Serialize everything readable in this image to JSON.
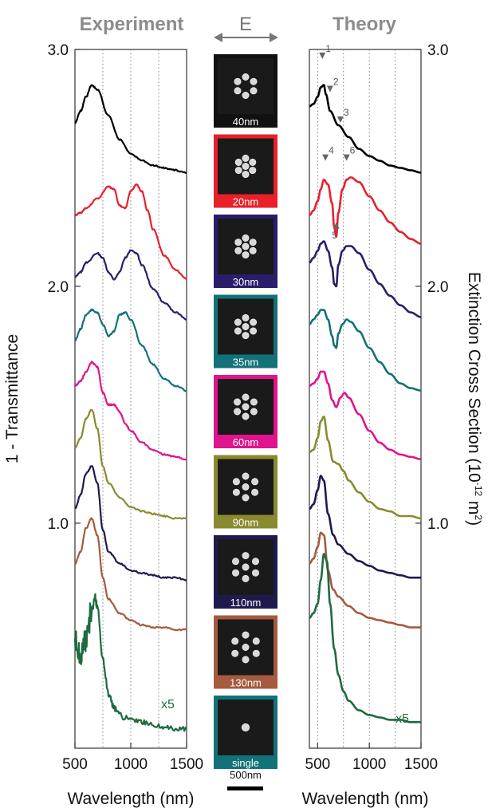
{
  "chart_data": [
    {
      "type": "line",
      "panel": "experiment",
      "title": "Experiment",
      "xlabel": "Wavelength (nm)",
      "ylabel": "1 - Transmittance",
      "xlim": [
        500,
        1500
      ],
      "ylim": [
        0.05,
        3.0
      ],
      "xticks": [
        "500",
        "1000",
        "1500"
      ],
      "yticks": [
        "1.0",
        "2.0",
        "3.0"
      ],
      "gridlines_x": [
        750,
        1000,
        1250
      ],
      "annotation": {
        "text": "x5",
        "color": "#1d6b3f"
      },
      "series": [
        {
          "color": "#000000",
          "x": [
            500,
            550,
            600,
            650,
            700,
            800,
            900,
            1000,
            1100,
            1200,
            1300,
            1400,
            1500
          ],
          "y": [
            2.69,
            2.74,
            2.8,
            2.85,
            2.83,
            2.72,
            2.62,
            2.56,
            2.53,
            2.51,
            2.5,
            2.49,
            2.48
          ]
        },
        {
          "color": "#e8202a",
          "x": [
            500,
            550,
            600,
            700,
            800,
            850,
            900,
            950,
            1000,
            1050,
            1100,
            1150,
            1200,
            1300,
            1400,
            1500
          ],
          "y": [
            2.3,
            2.31,
            2.33,
            2.37,
            2.42,
            2.41,
            2.34,
            2.33,
            2.4,
            2.43,
            2.4,
            2.32,
            2.24,
            2.13,
            2.07,
            2.03
          ]
        },
        {
          "color": "#2a1d6b",
          "x": [
            500,
            550,
            600,
            700,
            750,
            800,
            850,
            900,
            950,
            1000,
            1050,
            1100,
            1200,
            1300,
            1400,
            1500
          ],
          "y": [
            2.04,
            2.06,
            2.1,
            2.14,
            2.12,
            2.06,
            2.03,
            2.06,
            2.12,
            2.15,
            2.14,
            2.09,
            1.99,
            1.93,
            1.89,
            1.86
          ]
        },
        {
          "color": "#137178",
          "x": [
            500,
            550,
            600,
            650,
            700,
            750,
            800,
            850,
            900,
            950,
            1000,
            1100,
            1200,
            1300,
            1400,
            1500
          ],
          "y": [
            1.77,
            1.82,
            1.88,
            1.9,
            1.89,
            1.84,
            1.79,
            1.81,
            1.88,
            1.89,
            1.86,
            1.75,
            1.67,
            1.61,
            1.58,
            1.56
          ]
        },
        {
          "color": "#e0148c",
          "x": [
            500,
            550,
            600,
            650,
            700,
            750,
            800,
            850,
            900,
            950,
            1000,
            1100,
            1200,
            1300,
            1400,
            1500
          ],
          "y": [
            1.58,
            1.6,
            1.64,
            1.68,
            1.66,
            1.55,
            1.5,
            1.5,
            1.47,
            1.42,
            1.39,
            1.34,
            1.31,
            1.29,
            1.28,
            1.27
          ]
        },
        {
          "color": "#8a8a2e",
          "x": [
            500,
            550,
            600,
            650,
            700,
            750,
            800,
            900,
            1000,
            1100,
            1200,
            1300,
            1400,
            1500
          ],
          "y": [
            1.32,
            1.36,
            1.44,
            1.48,
            1.4,
            1.24,
            1.17,
            1.11,
            1.07,
            1.05,
            1.04,
            1.03,
            1.02,
            1.02
          ]
        },
        {
          "color": "#1f1a4e",
          "x": [
            500,
            550,
            600,
            650,
            700,
            750,
            800,
            900,
            1000,
            1100,
            1200,
            1300,
            1400,
            1500
          ],
          "y": [
            1.06,
            1.12,
            1.21,
            1.24,
            1.17,
            0.97,
            0.88,
            0.83,
            0.8,
            0.79,
            0.78,
            0.77,
            0.77,
            0.76
          ]
        },
        {
          "color": "#a65a3e",
          "x": [
            500,
            550,
            600,
            650,
            700,
            750,
            800,
            900,
            1000,
            1100,
            1200,
            1300,
            1400,
            1500
          ],
          "y": [
            0.83,
            0.88,
            0.98,
            1.02,
            0.95,
            0.77,
            0.68,
            0.62,
            0.59,
            0.57,
            0.56,
            0.56,
            0.55,
            0.55
          ]
        },
        {
          "color": "#1d6b3f",
          "x": [
            500,
            550,
            600,
            650,
            680,
            700,
            750,
            800,
            850,
            900,
            1000,
            1100,
            1200,
            1300,
            1400,
            1500
          ],
          "y": [
            0.5,
            0.42,
            0.52,
            0.63,
            0.69,
            0.64,
            0.42,
            0.28,
            0.22,
            0.19,
            0.17,
            0.16,
            0.15,
            0.14,
            0.13,
            0.13
          ]
        }
      ]
    },
    {
      "type": "line",
      "panel": "theory",
      "title": "Theory",
      "xlabel": "Wavelength (nm)",
      "ylabel": "Extinction Cross Section (10",
      "ylabel_exp": "-12",
      "ylabel_unit": " m",
      "ylabel_unit_exp": "2",
      "ylabel_close": ")",
      "xlim": [
        420,
        1500
      ],
      "ylim": [
        0.05,
        3.0
      ],
      "xticks": [
        "500",
        "1000",
        "1500"
      ],
      "yticks": [
        "1.0",
        "2.0",
        "3.0"
      ],
      "gridlines_x": [
        500,
        750,
        1000,
        1250
      ],
      "annotation": {
        "text": "x5",
        "color": "#1d6b3f"
      },
      "markers": [
        {
          "label": "1",
          "x": 545,
          "y": 2.96,
          "dir": "down"
        },
        {
          "label": "2",
          "x": 620,
          "y": 2.82,
          "dir": "down"
        },
        {
          "label": "3",
          "x": 720,
          "y": 2.69,
          "dir": "down"
        },
        {
          "label": "4",
          "x": 575,
          "y": 2.53,
          "dir": "down"
        },
        {
          "label": "6",
          "x": 780,
          "y": 2.53,
          "dir": "down"
        },
        {
          "label": "5",
          "x": 680,
          "y": 2.27,
          "dir": "up"
        }
      ],
      "series": [
        {
          "color": "#000000",
          "x": [
            420,
            460,
            500,
            530,
            560,
            580,
            620,
            700,
            800,
            900,
            1000,
            1100,
            1200,
            1300,
            1400,
            1500
          ],
          "y": [
            2.76,
            2.77,
            2.8,
            2.84,
            2.85,
            2.81,
            2.74,
            2.68,
            2.63,
            2.58,
            2.55,
            2.53,
            2.51,
            2.5,
            2.49,
            2.48
          ]
        },
        {
          "color": "#e8202a",
          "x": [
            420,
            460,
            500,
            530,
            560,
            600,
            640,
            660,
            680,
            700,
            740,
            780,
            820,
            900,
            1000,
            1100,
            1200,
            1300,
            1400,
            1500
          ],
          "y": [
            2.3,
            2.32,
            2.36,
            2.41,
            2.45,
            2.43,
            2.35,
            2.25,
            2.21,
            2.31,
            2.41,
            2.45,
            2.46,
            2.44,
            2.38,
            2.32,
            2.27,
            2.23,
            2.2,
            2.18
          ]
        },
        {
          "color": "#2a1d6b",
          "x": [
            420,
            460,
            500,
            530,
            560,
            600,
            640,
            660,
            680,
            700,
            740,
            780,
            820,
            900,
            1000,
            1100,
            1200,
            1300,
            1400,
            1500
          ],
          "y": [
            2.1,
            2.12,
            2.15,
            2.18,
            2.19,
            2.15,
            2.08,
            2.01,
            2.0,
            2.09,
            2.15,
            2.17,
            2.17,
            2.14,
            2.07,
            2.01,
            1.96,
            1.92,
            1.89,
            1.87
          ]
        },
        {
          "color": "#137178",
          "x": [
            420,
            460,
            500,
            530,
            560,
            600,
            640,
            660,
            680,
            700,
            740,
            780,
            820,
            900,
            1000,
            1100,
            1200,
            1300,
            1400,
            1500
          ],
          "y": [
            1.84,
            1.86,
            1.88,
            1.9,
            1.9,
            1.86,
            1.79,
            1.75,
            1.74,
            1.8,
            1.84,
            1.86,
            1.85,
            1.81,
            1.74,
            1.68,
            1.63,
            1.59,
            1.57,
            1.56
          ]
        },
        {
          "color": "#e0148c",
          "x": [
            420,
            460,
            500,
            530,
            560,
            600,
            640,
            680,
            720,
            760,
            800,
            900,
            1000,
            1100,
            1200,
            1300,
            1400,
            1500
          ],
          "y": [
            1.58,
            1.59,
            1.61,
            1.64,
            1.64,
            1.59,
            1.52,
            1.49,
            1.53,
            1.55,
            1.53,
            1.46,
            1.39,
            1.34,
            1.31,
            1.29,
            1.28,
            1.27
          ]
        },
        {
          "color": "#8a8a2e",
          "x": [
            420,
            460,
            500,
            530,
            560,
            600,
            650,
            700,
            750,
            800,
            900,
            1000,
            1100,
            1200,
            1300,
            1400,
            1500
          ],
          "y": [
            1.3,
            1.31,
            1.36,
            1.43,
            1.45,
            1.35,
            1.26,
            1.25,
            1.22,
            1.18,
            1.13,
            1.09,
            1.06,
            1.05,
            1.03,
            1.03,
            1.02
          ]
        },
        {
          "color": "#1f1a4e",
          "x": [
            420,
            460,
            500,
            530,
            560,
            600,
            650,
            700,
            800,
            900,
            1000,
            1100,
            1200,
            1300,
            1400,
            1500
          ],
          "y": [
            1.06,
            1.08,
            1.14,
            1.2,
            1.18,
            1.04,
            0.95,
            0.91,
            0.87,
            0.84,
            0.82,
            0.8,
            0.79,
            0.78,
            0.77,
            0.77
          ]
        },
        {
          "color": "#a65a3e",
          "x": [
            420,
            460,
            500,
            530,
            560,
            600,
            650,
            700,
            800,
            900,
            1000,
            1100,
            1200,
            1300,
            1400,
            1500
          ],
          "y": [
            0.83,
            0.85,
            0.9,
            0.96,
            0.95,
            0.8,
            0.72,
            0.69,
            0.65,
            0.62,
            0.6,
            0.59,
            0.58,
            0.57,
            0.56,
            0.56
          ]
        },
        {
          "color": "#1d6b3f",
          "x": [
            420,
            460,
            500,
            530,
            560,
            590,
            620,
            660,
            700,
            750,
            800,
            900,
            1000,
            1100,
            1200,
            1300,
            1400,
            1500
          ],
          "y": [
            0.6,
            0.62,
            0.66,
            0.76,
            0.87,
            0.84,
            0.66,
            0.47,
            0.36,
            0.29,
            0.25,
            0.21,
            0.19,
            0.18,
            0.17,
            0.17,
            0.16,
            0.16
          ]
        }
      ]
    }
  ],
  "center": {
    "field_label": "E",
    "scale_bar_label": "500nm",
    "tiles": [
      {
        "label": "40nm",
        "border": "#111111",
        "band": "#111111",
        "layout": "hex6",
        "sep": 0.9
      },
      {
        "label": "20nm",
        "border": "#e8202a",
        "band": "#e8202a",
        "layout": "hex7",
        "sep": 0.75
      },
      {
        "label": "30nm",
        "border": "#2a1d6b",
        "band": "#2a1d6b",
        "layout": "hex7",
        "sep": 0.8
      },
      {
        "label": "35nm",
        "border": "#137178",
        "band": "#137178",
        "layout": "hex7",
        "sep": 0.85
      },
      {
        "label": "60nm",
        "border": "#e0148c",
        "band": "#e0148c",
        "layout": "hex7",
        "sep": 0.95
      },
      {
        "label": "90nm",
        "border": "#8a8a2e",
        "band": "#8a8a2e",
        "layout": "hex7",
        "sep": 1.1
      },
      {
        "label": "110nm",
        "border": "#1f1a4e",
        "band": "#1f1a4e",
        "layout": "hex7",
        "sep": 1.2
      },
      {
        "label": "130nm",
        "border": "#a65a3e",
        "band": "#a65a3e",
        "layout": "hex7",
        "sep": 1.3
      },
      {
        "label": "single",
        "border": "#137178",
        "band": "#137178",
        "layout": "single",
        "sep": 0
      }
    ]
  }
}
